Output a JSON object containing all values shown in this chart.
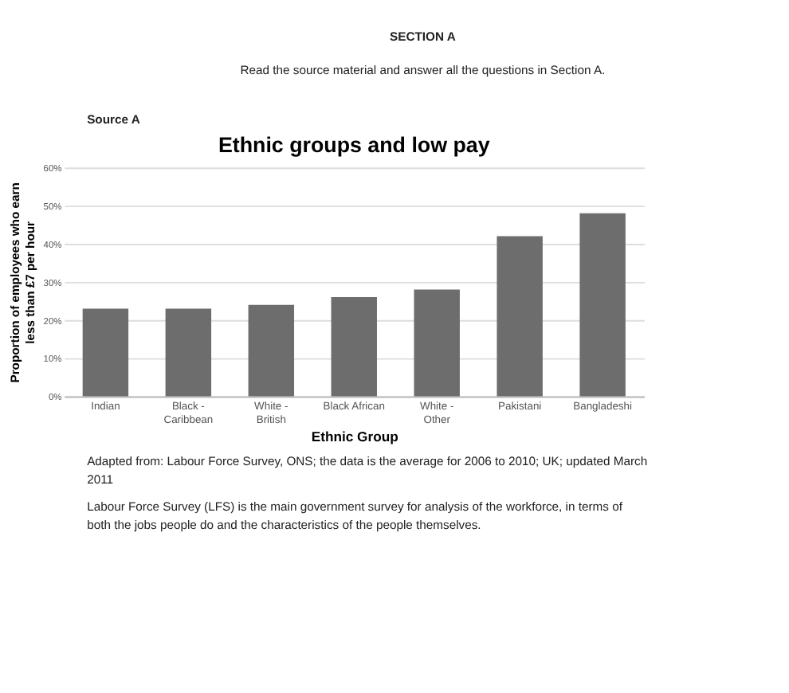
{
  "chart_data": {
    "type": "bar",
    "title": "Ethnic groups and low pay",
    "xlabel": "Ethnic Group",
    "ylabel": "Proportion of employees who earn less than £7 per hour",
    "categories": [
      "Indian",
      "Black - Caribbean",
      "White - British",
      "Black African",
      "White - Other",
      "Pakistani",
      "Bangladeshi"
    ],
    "values": [
      23,
      23,
      24,
      26,
      28,
      42,
      48
    ],
    "color": "#6d6d6d",
    "ylim": [
      0,
      60
    ],
    "yticks": [
      {
        "value": 0,
        "label": "0%"
      },
      {
        "value": 10,
        "label": "10%"
      },
      {
        "value": 20,
        "label": "20%"
      },
      {
        "value": 30,
        "label": "30%"
      },
      {
        "value": 40,
        "label": "40%"
      },
      {
        "value": 50,
        "label": "50%"
      },
      {
        "value": 60,
        "label": "60%"
      }
    ],
    "grid": "y",
    "annotations": [
      "SECTION A",
      "Read the source material and answer all the questions in Section A.",
      "Source A",
      "Adapted from: Labour Force Survey, ONS; the data is the average for 2006 to 2010; UK; updated March 2011",
      "Labour Force Survey (LFS) is the main government survey for analysis of the workforce, in terms of both the jobs people do and the characteristics of the people themselves."
    ]
  }
}
